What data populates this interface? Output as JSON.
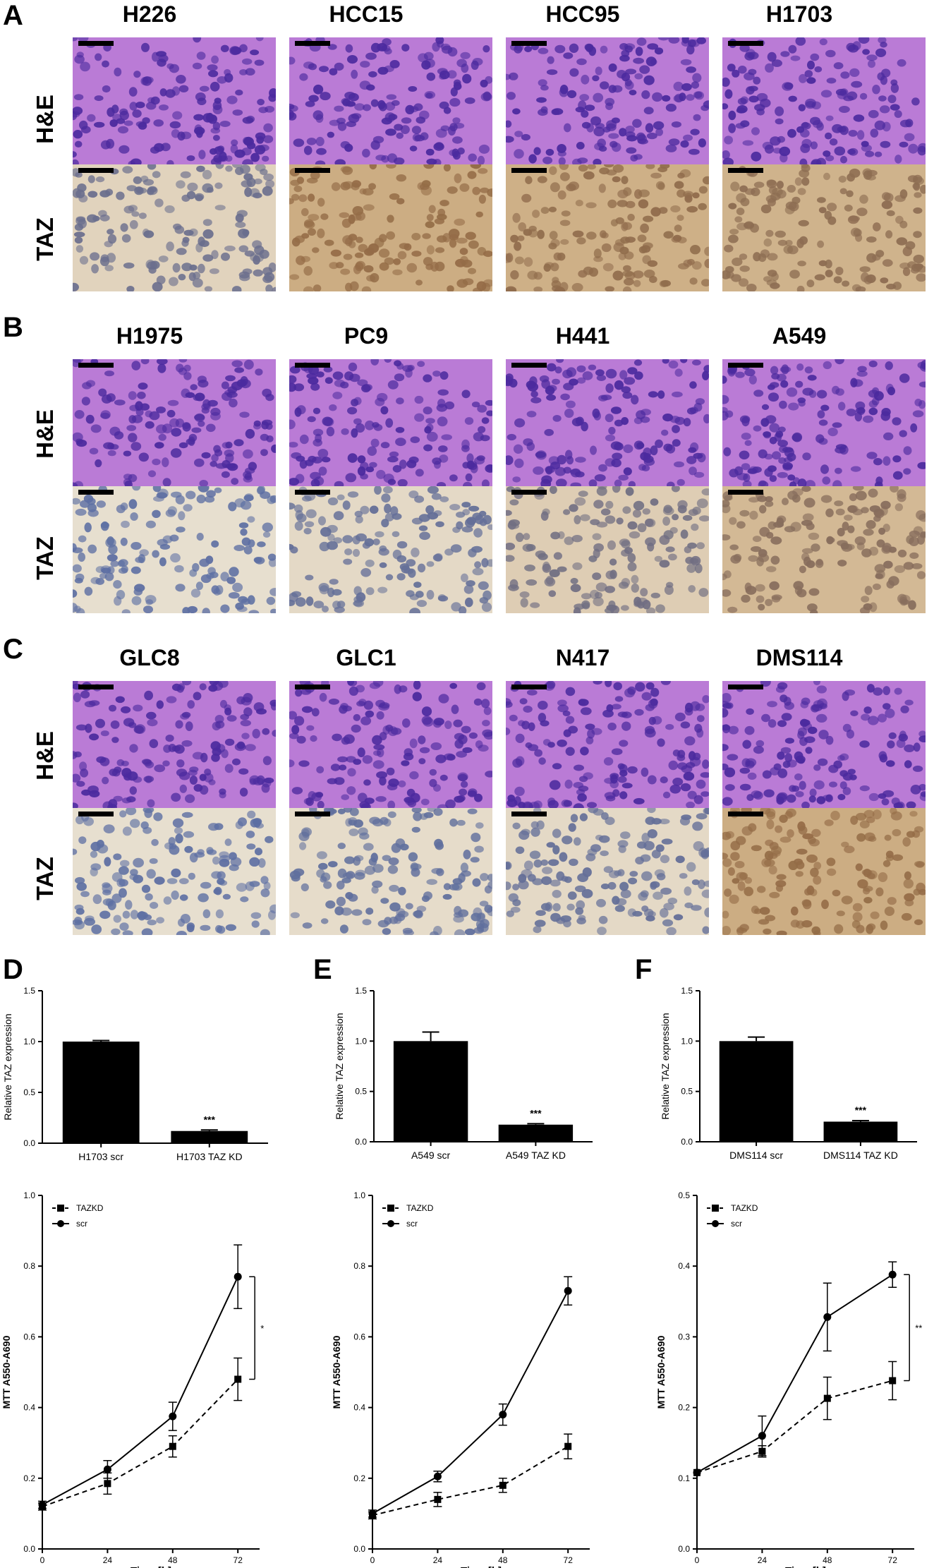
{
  "microscopy": {
    "panels": [
      {
        "letter": "A",
        "rows": [
          "H&E",
          "TAZ"
        ],
        "lines": [
          "H226",
          "HCC15",
          "HCC95",
          "H1703"
        ]
      },
      {
        "letter": "B",
        "rows": [
          "H&E",
          "TAZ"
        ],
        "lines": [
          "H1975",
          "PC9",
          "H441",
          "A549"
        ]
      },
      {
        "letter": "C",
        "rows": [
          "H&E",
          "TAZ"
        ],
        "lines": [
          "GLC8",
          "GLC1",
          "N417",
          "DMS114"
        ]
      }
    ],
    "taz_intensity": [
      [
        0.25,
        0.9,
        0.85,
        0.8
      ],
      [
        0.05,
        0.15,
        0.35,
        0.7
      ],
      [
        0.05,
        0.1,
        0.15,
        0.9
      ]
    ],
    "colors": {
      "he_background": "#ba7bd6",
      "he_nuclei": "#4b2a9e",
      "taz_positive": "#9a6c3c",
      "taz_negative": "#5a6fa8",
      "taz_background": "#e9e2d3"
    }
  },
  "chart_data": [
    {
      "panel": "D",
      "type": "bar",
      "categories": [
        "H1703 scr",
        "H1703 TAZ KD"
      ],
      "values": [
        1.0,
        0.12
      ],
      "errors": [
        0.01,
        0.01
      ],
      "significance": [
        "",
        "***"
      ],
      "ylabel": "Relative TAZ expression",
      "ylim": [
        0,
        1.5
      ],
      "yticks": [
        "0.0",
        "0.5",
        "1.0",
        "1.5"
      ]
    },
    {
      "panel": "E",
      "type": "bar",
      "categories": [
        "A549 scr",
        "A549 TAZ KD"
      ],
      "values": [
        1.0,
        0.17
      ],
      "errors": [
        0.09,
        0.01
      ],
      "significance": [
        "",
        "***"
      ],
      "ylabel": "Relative TAZ expression",
      "ylim": [
        0,
        1.5
      ],
      "yticks": [
        "0.0",
        "0.5",
        "1.0",
        "1.5"
      ]
    },
    {
      "panel": "F",
      "type": "bar",
      "categories": [
        "DMS114 scr",
        "DMS114 TAZ KD"
      ],
      "values": [
        1.0,
        0.2
      ],
      "errors": [
        0.04,
        0.01
      ],
      "significance": [
        "",
        "***"
      ],
      "ylabel": "Relative TAZ expression",
      "ylim": [
        0,
        1.5
      ],
      "yticks": [
        "0.0",
        "0.5",
        "1.0",
        "1.5"
      ]
    },
    {
      "type": "line",
      "x": [
        0,
        24,
        48,
        72
      ],
      "xticks": [
        "0",
        "24",
        "48",
        "72"
      ],
      "series": [
        {
          "name": "TAZKD",
          "values": [
            0.12,
            0.185,
            0.29,
            0.48
          ],
          "errors": [
            0.01,
            0.03,
            0.03,
            0.06
          ],
          "dashed": true,
          "marker": "square"
        },
        {
          "name": "scr",
          "values": [
            0.125,
            0.225,
            0.375,
            0.77
          ],
          "errors": [
            0.01,
            0.025,
            0.04,
            0.09
          ],
          "dashed": false,
          "marker": "circle"
        }
      ],
      "significance": "*",
      "xlabel": "Time [h]",
      "ylabel": "MTT A550-A690",
      "ylim": [
        0,
        1.0
      ],
      "yticks": [
        "0.0",
        "0.2",
        "0.4",
        "0.6",
        "0.8",
        "1.0"
      ],
      "legend": "top-left"
    },
    {
      "type": "line",
      "x": [
        0,
        24,
        48,
        72
      ],
      "xticks": [
        "0",
        "24",
        "48",
        "72"
      ],
      "series": [
        {
          "name": "TAZKD",
          "values": [
            0.095,
            0.14,
            0.18,
            0.29
          ],
          "errors": [
            0.01,
            0.02,
            0.02,
            0.035
          ],
          "dashed": true,
          "marker": "square"
        },
        {
          "name": "scr",
          "values": [
            0.1,
            0.205,
            0.38,
            0.73
          ],
          "errors": [
            0.01,
            0.015,
            0.03,
            0.04
          ],
          "dashed": false,
          "marker": "circle"
        }
      ],
      "significance": "",
      "xlabel": "Time [h]",
      "ylabel": "MTT A550-A690",
      "ylim": [
        0,
        1.0
      ],
      "yticks": [
        "0.0",
        "0.2",
        "0.4",
        "0.6",
        "0.8",
        "1.0"
      ],
      "legend": "top-left"
    },
    {
      "type": "line",
      "x": [
        0,
        24,
        48,
        72
      ],
      "xticks": [
        "0",
        "24",
        "48",
        "72"
      ],
      "series": [
        {
          "name": "TAZKD",
          "values": [
            0.108,
            0.138,
            0.213,
            0.238
          ],
          "errors": [
            0.004,
            0.008,
            0.03,
            0.027
          ],
          "dashed": true,
          "marker": "square"
        },
        {
          "name": "scr",
          "values": [
            0.108,
            0.16,
            0.328,
            0.388
          ],
          "errors": [
            0.004,
            0.028,
            0.048,
            0.018
          ],
          "dashed": false,
          "marker": "circle"
        }
      ],
      "significance": "**",
      "xlabel": "Time [h]",
      "ylabel": "MTT A550-A690",
      "ylim": [
        0,
        0.5
      ],
      "yticks": [
        "0.0",
        "0.1",
        "0.2",
        "0.3",
        "0.4",
        "0.5"
      ],
      "legend": "top-left"
    }
  ]
}
